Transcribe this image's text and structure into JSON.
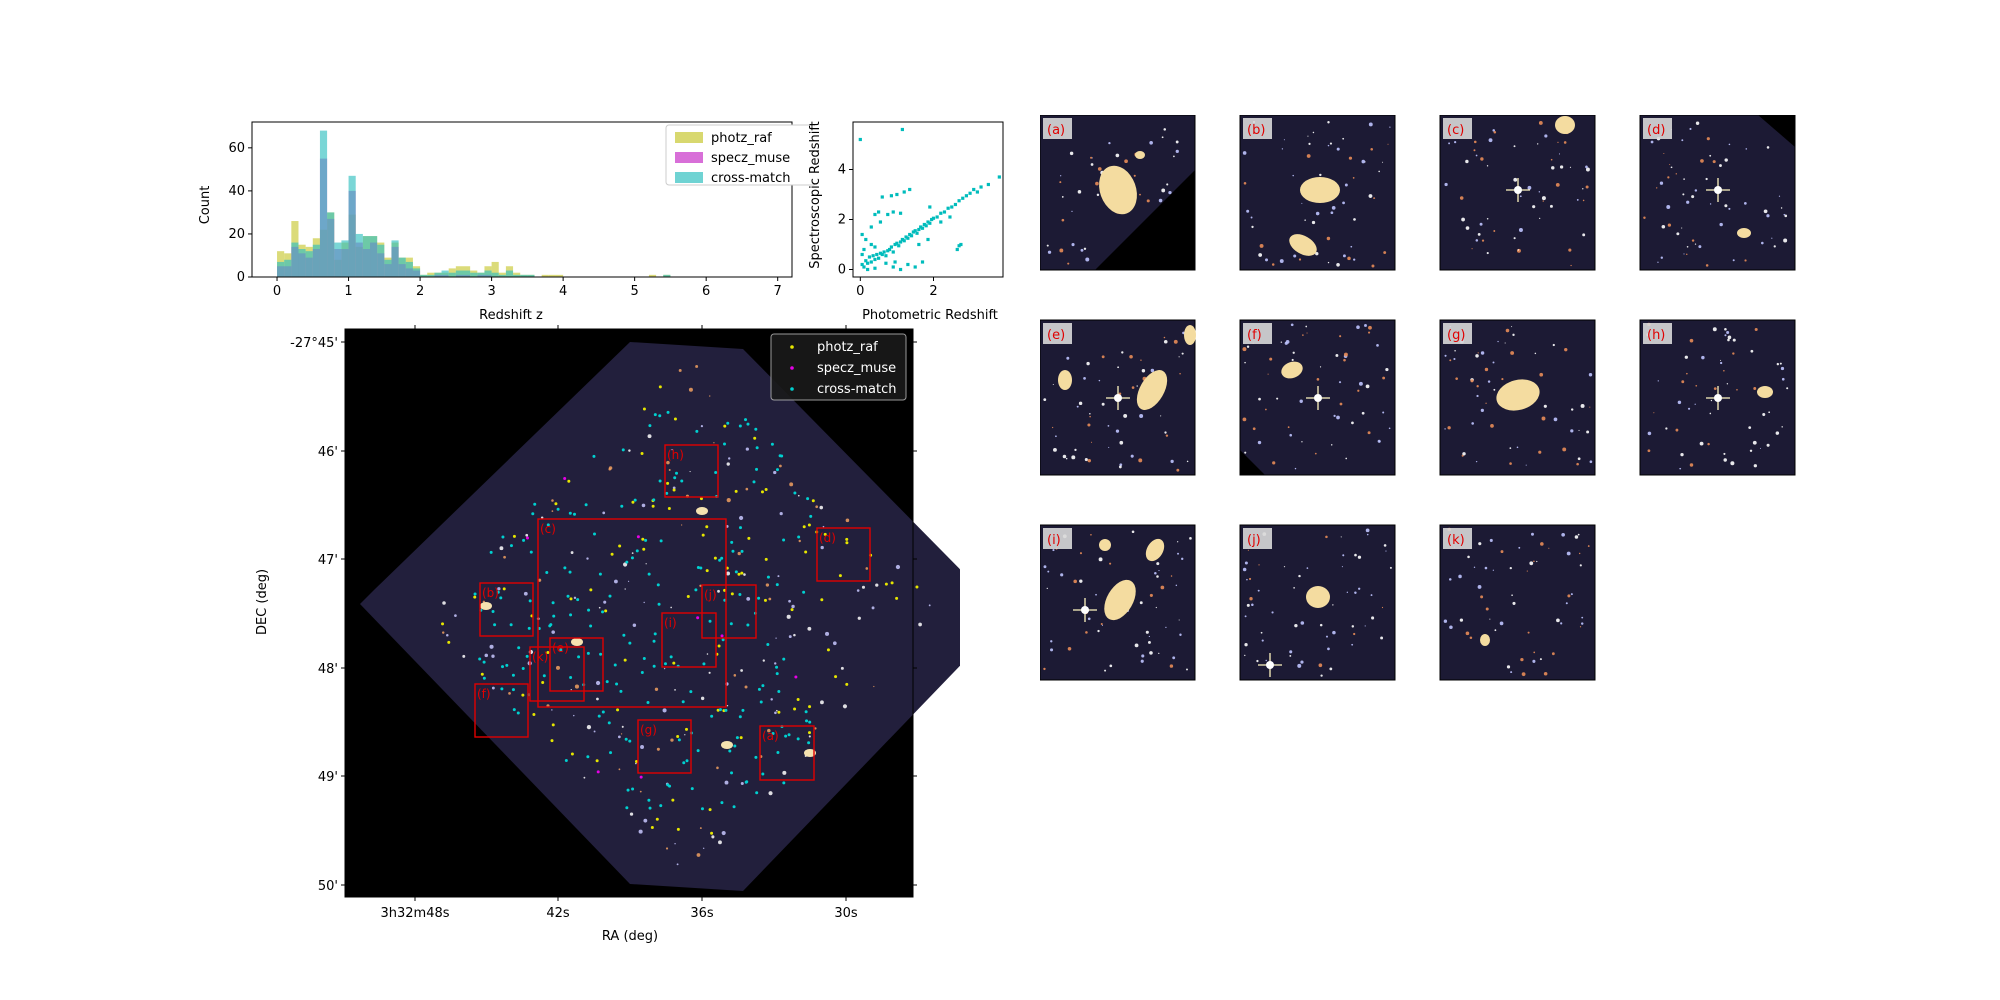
{
  "colors": {
    "photz_raf": "#c8c832",
    "specz_muse": "#c832c8",
    "cross_match": "#32c0c0",
    "photz_raf_marker": "#e6e600",
    "specz_muse_marker": "#e600e6",
    "cross_match_marker": "#00d0d0",
    "box": "#e00000",
    "sky_bg": "#000000",
    "field_bg": "#221f3c"
  },
  "chart_data": [
    {
      "type": "bar",
      "xlabel": "Redshift z",
      "ylabel": "Count",
      "xlim": [
        -0.35,
        7.2
      ],
      "ylim": [
        0,
        72
      ],
      "xticks": [
        "0",
        "1",
        "2",
        "3",
        "4",
        "5",
        "6",
        "7"
      ],
      "yticks": [
        "0",
        "20",
        "40",
        "60"
      ],
      "legend_position": "top-right",
      "bin_width": 0.1,
      "bin_starts": [
        0.0,
        0.1,
        0.2,
        0.3,
        0.4,
        0.5,
        0.6,
        0.7,
        0.8,
        0.9,
        1.0,
        1.1,
        1.2,
        1.3,
        1.4,
        1.5,
        1.6,
        1.7,
        1.8,
        1.9,
        2.0,
        2.1,
        2.2,
        2.3,
        2.4,
        2.5,
        2.6,
        2.7,
        2.8,
        2.9,
        3.0,
        3.1,
        3.2,
        3.3,
        3.4,
        3.5,
        3.6,
        3.7,
        3.8,
        3.9,
        4.0,
        5.2,
        5.4
      ],
      "series": [
        {
          "name": "photz_raf",
          "values": [
            12,
            11,
            26,
            15,
            14,
            18,
            22,
            30,
            8,
            16,
            29,
            14,
            19,
            19,
            16,
            9,
            16,
            9,
            9,
            5,
            1,
            2,
            2,
            2,
            4,
            5,
            5,
            3,
            2,
            5,
            7,
            2,
            5,
            2,
            1,
            1,
            0,
            1,
            1,
            1,
            0,
            1,
            1
          ]
        },
        {
          "name": "specz_muse",
          "values": [
            5,
            5,
            14,
            11,
            9,
            13,
            55,
            27,
            13,
            13,
            40,
            16,
            13,
            16,
            11,
            6,
            14,
            6,
            4,
            3,
            0,
            0,
            1,
            1,
            0,
            1,
            1,
            0,
            1,
            1,
            0,
            0,
            0,
            0,
            0,
            0,
            0,
            0,
            0,
            0,
            0,
            0,
            0
          ]
        },
        {
          "name": "cross-match",
          "values": [
            7,
            8,
            16,
            13,
            12,
            15,
            68,
            30,
            16,
            17,
            47,
            20,
            19,
            19,
            15,
            8,
            17,
            9,
            7,
            4,
            1,
            1,
            2,
            3,
            2,
            3,
            3,
            2,
            2,
            3,
            2,
            1,
            3,
            1,
            1,
            1,
            0,
            0,
            0,
            0,
            0,
            0,
            1
          ]
        }
      ]
    },
    {
      "type": "scatter",
      "xlabel": "Photometric Redshift",
      "ylabel": "Spectroscopic Redshift",
      "xlim": [
        -0.2,
        3.9
      ],
      "ylim": [
        -0.3,
        5.9
      ],
      "xticks": [
        "0",
        "2"
      ],
      "yticks": [
        "0",
        "2",
        "4"
      ],
      "points": [
        [
          0.05,
          0.2
        ],
        [
          0.1,
          0.1
        ],
        [
          0.15,
          0.35
        ],
        [
          0.2,
          0.25
        ],
        [
          0.25,
          0.5
        ],
        [
          0.3,
          0.3
        ],
        [
          0.35,
          0.55
        ],
        [
          0.4,
          0.4
        ],
        [
          0.45,
          0.6
        ],
        [
          0.5,
          0.45
        ],
        [
          0.55,
          0.65
        ],
        [
          0.6,
          0.6
        ],
        [
          0.65,
          0.7
        ],
        [
          0.7,
          0.55
        ],
        [
          0.75,
          0.75
        ],
        [
          0.8,
          0.8
        ],
        [
          0.85,
          0.9
        ],
        [
          0.9,
          0.7
        ],
        [
          0.95,
          1.0
        ],
        [
          1.0,
          1.05
        ],
        [
          1.05,
          0.95
        ],
        [
          1.1,
          1.1
        ],
        [
          1.15,
          1.2
        ],
        [
          1.2,
          1.15
        ],
        [
          1.25,
          1.3
        ],
        [
          1.3,
          1.25
        ],
        [
          1.35,
          1.4
        ],
        [
          1.4,
          1.35
        ],
        [
          1.45,
          1.5
        ],
        [
          1.5,
          1.55
        ],
        [
          1.55,
          1.45
        ],
        [
          1.6,
          1.6
        ],
        [
          1.65,
          1.7
        ],
        [
          1.7,
          1.65
        ],
        [
          1.75,
          1.8
        ],
        [
          1.8,
          1.75
        ],
        [
          1.85,
          1.9
        ],
        [
          1.9,
          1.85
        ],
        [
          1.95,
          2.0
        ],
        [
          2.0,
          2.05
        ],
        [
          2.1,
          2.1
        ],
        [
          2.2,
          2.25
        ],
        [
          2.3,
          2.3
        ],
        [
          2.4,
          2.45
        ],
        [
          2.5,
          2.5
        ],
        [
          2.6,
          2.6
        ],
        [
          2.7,
          2.75
        ],
        [
          2.8,
          2.85
        ],
        [
          2.9,
          2.95
        ],
        [
          3.0,
          3.05
        ],
        [
          3.1,
          3.2
        ],
        [
          3.2,
          3.1
        ],
        [
          3.3,
          3.3
        ],
        [
          3.5,
          3.4
        ],
        [
          3.8,
          3.7
        ],
        [
          0.0,
          5.2
        ],
        [
          1.15,
          5.6
        ],
        [
          0.6,
          2.9
        ],
        [
          0.85,
          2.95
        ],
        [
          1.0,
          3.0
        ],
        [
          1.2,
          3.1
        ],
        [
          1.35,
          3.2
        ],
        [
          0.4,
          2.2
        ],
        [
          0.5,
          2.3
        ],
        [
          0.75,
          2.2
        ],
        [
          0.9,
          2.3
        ],
        [
          1.1,
          2.25
        ],
        [
          0.3,
          1.7
        ],
        [
          0.55,
          1.9
        ],
        [
          0.15,
          1.2
        ],
        [
          0.3,
          1.0
        ],
        [
          0.4,
          0.9
        ],
        [
          1.3,
          0.2
        ],
        [
          1.5,
          0.1
        ],
        [
          1.7,
          0.3
        ],
        [
          2.65,
          0.8
        ],
        [
          2.75,
          1.0
        ],
        [
          2.7,
          0.95
        ],
        [
          0.2,
          0.0
        ],
        [
          0.4,
          0.05
        ],
        [
          0.9,
          0.1
        ],
        [
          1.1,
          0.0
        ],
        [
          0.05,
          0.6
        ],
        [
          0.1,
          0.8
        ],
        [
          0.7,
          0.25
        ],
        [
          0.95,
          0.3
        ],
        [
          1.6,
          1.0
        ],
        [
          1.85,
          1.2
        ],
        [
          2.2,
          1.9
        ],
        [
          2.45,
          2.1
        ],
        [
          0.05,
          1.4
        ],
        [
          1.9,
          2.5
        ]
      ]
    },
    {
      "type": "scatter",
      "xlabel": "RA (deg)",
      "ylabel": "DEC (deg)",
      "xticks": [
        "3h32m48s",
        "42s",
        "36s",
        "30s"
      ],
      "yticks": [
        "-27°45'",
        "46'",
        "47'",
        "48'",
        "49'",
        "50'"
      ],
      "legend_position": "top-right",
      "series": [
        {
          "name": "photz_raf"
        },
        {
          "name": "specz_muse"
        },
        {
          "name": "cross-match"
        }
      ],
      "regions": [
        "(a)",
        "(b)",
        "(c)",
        "(d)",
        "(e)",
        "(f)",
        "(g)",
        "(h)",
        "(i)",
        "(j)",
        "(k)"
      ]
    }
  ],
  "thumbnails": [
    "(a)",
    "(b)",
    "(c)",
    "(d)",
    "(e)",
    "(f)",
    "(g)",
    "(h)",
    "(i)",
    "(j)",
    "(k)"
  ]
}
